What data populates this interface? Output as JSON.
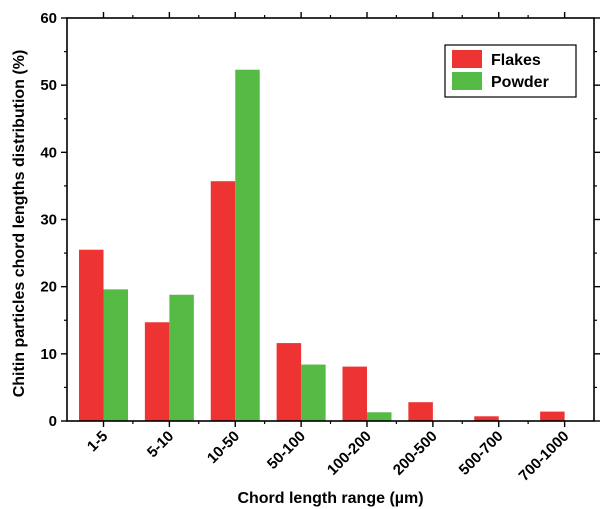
{
  "chart_data": {
    "type": "bar",
    "xlabel": "Chord length range (µm)",
    "ylabel": "Chitin particles chord lengths distribution (%)",
    "ylim": [
      0,
      60
    ],
    "yticks": [
      0,
      10,
      20,
      30,
      40,
      50,
      60
    ],
    "categories": [
      "1-5",
      "5-10",
      "10-50",
      "50-100",
      "100-200",
      "200-500",
      "500-700",
      "700-1000"
    ],
    "series": [
      {
        "name": "Flakes",
        "color": "#ee3333",
        "values": [
          25.5,
          14.7,
          35.7,
          11.6,
          8.1,
          2.8,
          0.7,
          1.4
        ]
      },
      {
        "name": "Powder",
        "color": "#55bb44",
        "values": [
          19.6,
          18.8,
          52.3,
          8.4,
          1.3,
          0,
          0,
          0
        ]
      }
    ],
    "legend_position": "top-right",
    "grid": false
  }
}
